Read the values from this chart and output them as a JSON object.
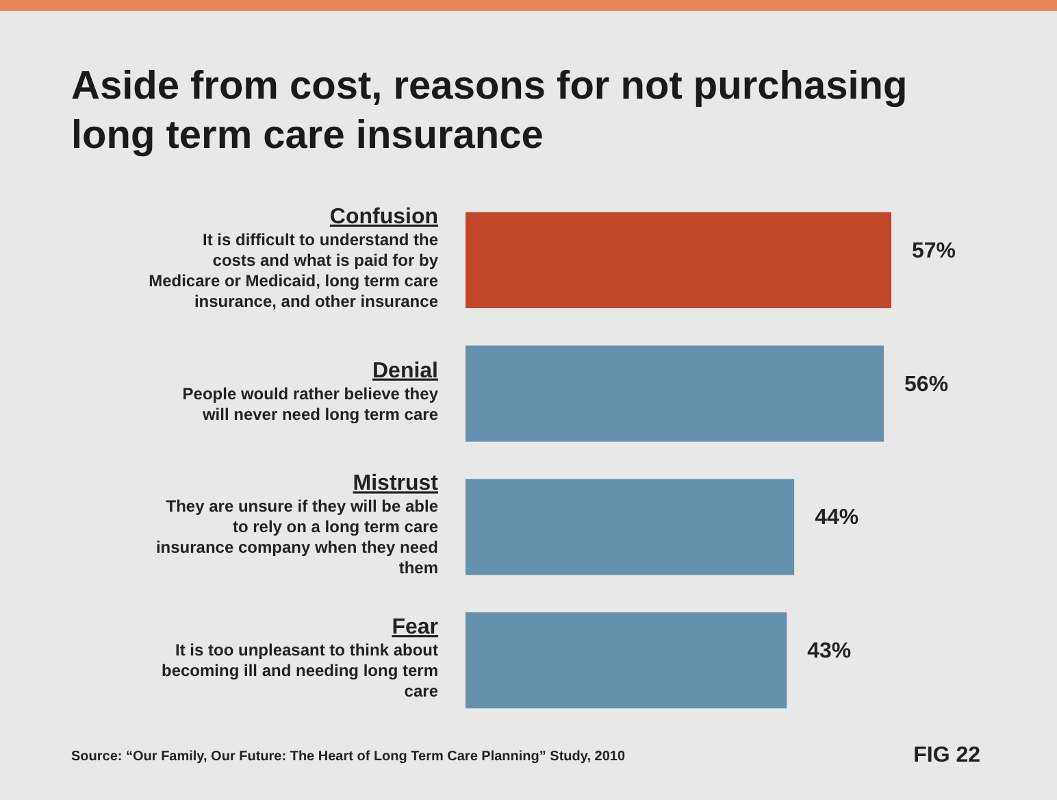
{
  "chart_data": {
    "type": "bar",
    "orientation": "horizontal",
    "title": "Aside from cost, reasons for not purchasing long term care insurance",
    "categories": [
      "Confusion",
      "Denial",
      "Mistrust",
      "Fear"
    ],
    "values": [
      57,
      56,
      44,
      43
    ],
    "colors": [
      "#c0472a",
      "#6591ad",
      "#6591ad",
      "#6591ad"
    ],
    "value_labels": [
      "57%",
      "56%",
      "44%",
      "43%"
    ],
    "annotations": [
      "It is difficult to understand the costs and what is paid for by Medicare or Medicaid, long term care insurance, and other insurance",
      "People would rather believe they will never need long term care",
      "They are unsure if they will be able to rely on a long term care insurance company when they need them",
      "It is too unpleasant to think about becoming ill and needing long term care",
      "Source: “Our Family, Our Future: The Heart of Long Term Care Planning” Study, 2010",
      "FIG 22"
    ]
  }
}
